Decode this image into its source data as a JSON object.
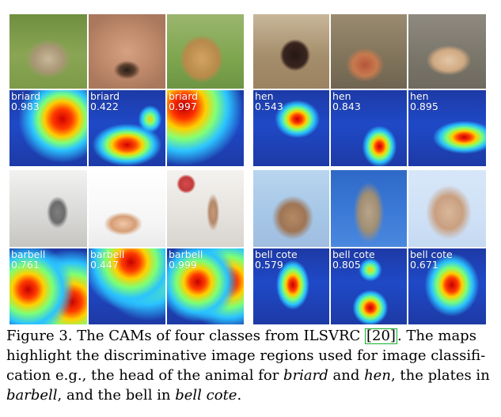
{
  "figure": {
    "panels": [
      {
        "group": "animals-dogs",
        "items": [
          {
            "photo_name": "briard-photo-1",
            "label": "briard",
            "score": "0.983"
          },
          {
            "photo_name": "briard-photo-2",
            "label": "briard",
            "score": "0.422"
          },
          {
            "photo_name": "briard-photo-3",
            "label": "briard",
            "score": "0.997"
          }
        ]
      },
      {
        "group": "animals-hens",
        "items": [
          {
            "photo_name": "hen-photo-1",
            "label": "hen",
            "score": "0.543"
          },
          {
            "photo_name": "hen-photo-2",
            "label": "hen",
            "score": "0.843"
          },
          {
            "photo_name": "hen-photo-3",
            "label": "hen",
            "score": "0.895"
          }
        ]
      },
      {
        "group": "objects-barbell",
        "items": [
          {
            "photo_name": "barbell-photo-1",
            "label": "barbell",
            "score": "0.761"
          },
          {
            "photo_name": "barbell-photo-2",
            "label": "barbell",
            "score": "0.447"
          },
          {
            "photo_name": "barbell-photo-3",
            "label": "barbell",
            "score": "0.999"
          }
        ]
      },
      {
        "group": "objects-bell-cote",
        "items": [
          {
            "photo_name": "bell-cote-photo-1",
            "label": "bell cote",
            "score": "0.579"
          },
          {
            "photo_name": "bell-cote-photo-2",
            "label": "bell cote",
            "score": "0.805"
          },
          {
            "photo_name": "bell-cote-photo-3",
            "label": "bell cote",
            "score": "0.671"
          }
        ]
      }
    ]
  },
  "caption": {
    "line1_a": "Figure 3. The CAMs of four classes from ILSVRC ",
    "cite": "[20]",
    "line1_b": ". The maps",
    "line2": "highlight the discriminative image regions used for image classifi-",
    "line3_a": "cation e.g., the head of the animal for ",
    "italic_briard": "briard",
    "line3_b": " and ",
    "italic_hen": "hen",
    "line3_c": ", the plates in",
    "italic_barbell": "barbell",
    "line4_a": ", and the bell in ",
    "italic_bellcote": "bell cote",
    "line4_b": "."
  }
}
